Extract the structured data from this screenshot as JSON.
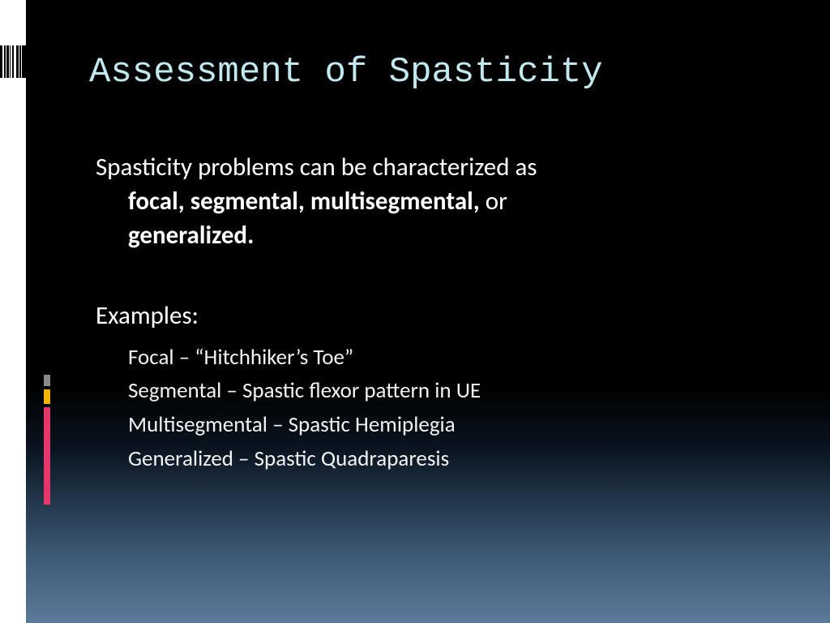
{
  "colors": {
    "title": "#bfe8ef",
    "body_text": "#ffffff",
    "background_top": "#000000",
    "background_bottom": "#5c7a9a",
    "accent_gray": "#8a8a8a",
    "accent_yellow": "#f5b400",
    "accent_pink": "#e6376c"
  },
  "title": "Assessment of Spasticity",
  "intro_line1": "Spasticity problems can be characterized as",
  "intro_bold": "focal, segmental, multisegmental, ",
  "intro_or": "or",
  "intro_bold2": "generalized.",
  "examples_label": "Examples:",
  "examples": [
    "Focal – “Hitchhiker’s Toe”",
    "Segmental – Spastic flexor pattern in UE",
    "Multisegmental – Spastic Hemiplegia",
    "Generalized – Spastic Quadraparesis"
  ],
  "typography": {
    "title_font": "Consolas",
    "title_size_pt": 33,
    "body_font": "Segoe UI",
    "body_size_pt": 23,
    "example_size_pt": 20
  },
  "accent_bars": [
    {
      "color": "#8a8a8a",
      "height": 14
    },
    {
      "color": "#f5b400",
      "height": 18
    },
    {
      "color": "#e6376c",
      "height": 120
    }
  ],
  "barcode": [
    {
      "c": "#000000",
      "w": 3
    },
    {
      "c": "#ffffff",
      "w": 2
    },
    {
      "c": "#000000",
      "w": 2
    },
    {
      "c": "#ffffff",
      "w": 1
    },
    {
      "c": "#000000",
      "w": 3
    },
    {
      "c": "#ffffff",
      "w": 1
    },
    {
      "c": "#000000",
      "w": 1
    },
    {
      "c": "#ffffff",
      "w": 2
    },
    {
      "c": "#000000",
      "w": 2
    },
    {
      "c": "#ffffff",
      "w": 3
    },
    {
      "c": "#000000",
      "w": 3
    },
    {
      "c": "#ffffff",
      "w": 1
    },
    {
      "c": "#000000",
      "w": 2
    },
    {
      "c": "#ffffff",
      "w": 1
    },
    {
      "c": "#000000",
      "w": 5
    }
  ]
}
